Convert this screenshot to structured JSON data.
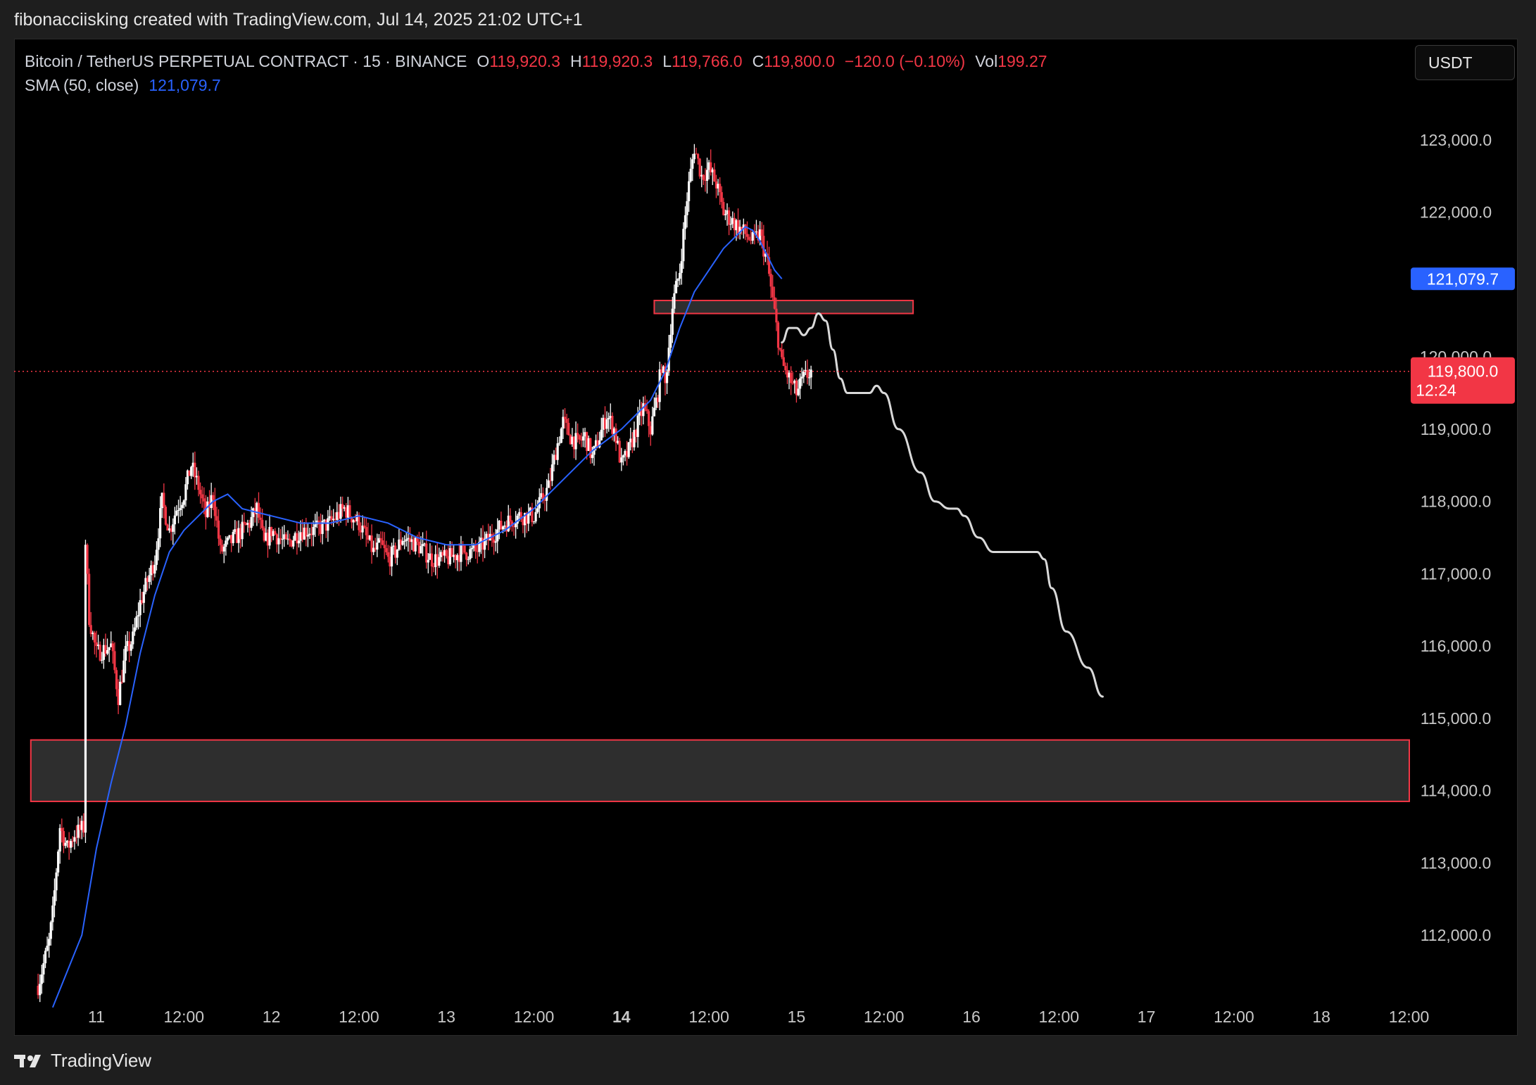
{
  "header": {
    "caption": "fibonacciisking created with TradingView.com, Jul 14, 2025 21:02 UTC+1"
  },
  "legend": {
    "symbol": "Bitcoin / TetherUS PERPETUAL CONTRACT · 15 · BINANCE",
    "o_label": "O",
    "o_value": "119,920.3",
    "h_label": "H",
    "h_value": "119,920.3",
    "l_label": "L",
    "l_value": "119,766.0",
    "c_label": "C",
    "c_value": "119,800.0",
    "change": "−120.0 (−0.10%)",
    "vol_label": "Vol",
    "vol_value": "199.27",
    "sma_label": "SMA (50, close)",
    "sma_value": "121,079.7"
  },
  "toolbar": {
    "currency": "USDT"
  },
  "footer": {
    "brand": "TradingView"
  },
  "colors": {
    "up": "#ffffff",
    "down": "#f23645",
    "sma": "#2962ff",
    "projection": "#d9d9d9",
    "zone_fill": "#2e2e2e",
    "zone_border": "#f23645"
  },
  "chart_data": {
    "type": "candlestick",
    "ylim": [
      111000,
      124000
    ],
    "y_ticks": [
      "123,000.0",
      "122,000.0",
      "120,000.0",
      "119,000.0",
      "118,000.0",
      "117,000.0",
      "116,000.0",
      "115,000.0",
      "114,000.0",
      "113,000.0",
      "112,000.0"
    ],
    "y_tick_values": [
      123000,
      122000,
      120000,
      119000,
      118000,
      117000,
      116000,
      115000,
      114000,
      113000,
      112000
    ],
    "x_ticks": [
      "11",
      "12:00",
      "12",
      "12:00",
      "13",
      "12:00",
      "14",
      "12:00",
      "15",
      "12:00",
      "16",
      "12:00",
      "17",
      "12:00",
      "18",
      "12:00"
    ],
    "x_tick_values": [
      0,
      12,
      24,
      36,
      48,
      60,
      72,
      84,
      96,
      108,
      120,
      132,
      144,
      156,
      168,
      180
    ],
    "x_unit": "hours since Jul 11 00:00",
    "xlim": [
      -9,
      185
    ],
    "current_price": {
      "value": 119800,
      "label": "119,800.0",
      "countdown": "12:24"
    },
    "sma_last": {
      "value": 121079.7,
      "label": "121,079.7"
    },
    "price_path": [
      [
        -8,
        111300
      ],
      [
        -6.5,
        111900
      ],
      [
        -6,
        112300
      ],
      [
        -5,
        113500
      ],
      [
        -4,
        113200
      ],
      [
        -3,
        113400
      ],
      [
        -1.5,
        113500
      ],
      [
        -1.5,
        117400
      ],
      [
        -1,
        116400
      ],
      [
        0,
        115900
      ],
      [
        2,
        116000
      ],
      [
        3,
        115300
      ],
      [
        4,
        115900
      ],
      [
        5,
        116100
      ],
      [
        6,
        116600
      ],
      [
        7,
        116900
      ],
      [
        8,
        117200
      ],
      [
        9,
        118000
      ],
      [
        10,
        117600
      ],
      [
        11,
        117900
      ],
      [
        12,
        118100
      ],
      [
        13,
        118500
      ],
      [
        14,
        118200
      ],
      [
        15,
        117800
      ],
      [
        16,
        118100
      ],
      [
        17,
        117300
      ],
      [
        18,
        117400
      ],
      [
        19,
        117500
      ],
      [
        20,
        117600
      ],
      [
        21,
        117700
      ],
      [
        22,
        117900
      ],
      [
        23,
        117400
      ],
      [
        24,
        117600
      ],
      [
        25,
        117500
      ],
      [
        26,
        117400
      ],
      [
        28,
        117600
      ],
      [
        30,
        117600
      ],
      [
        32,
        117700
      ],
      [
        34,
        117900
      ],
      [
        36,
        117700
      ],
      [
        37,
        117500
      ],
      [
        38,
        117300
      ],
      [
        39,
        117400
      ],
      [
        40,
        117200
      ],
      [
        41,
        117300
      ],
      [
        42,
        117500
      ],
      [
        44,
        117400
      ],
      [
        46,
        117200
      ],
      [
        48,
        117200
      ],
      [
        50,
        117300
      ],
      [
        52,
        117300
      ],
      [
        54,
        117500
      ],
      [
        56,
        117700
      ],
      [
        58,
        117800
      ],
      [
        60,
        117800
      ],
      [
        62,
        118200
      ],
      [
        63,
        118700
      ],
      [
        64,
        119100
      ],
      [
        65,
        118900
      ],
      [
        66,
        118800
      ],
      [
        67,
        118900
      ],
      [
        68,
        118600
      ],
      [
        69,
        118900
      ],
      [
        70,
        119200
      ],
      [
        71,
        119000
      ],
      [
        72,
        118500
      ],
      [
        73,
        118700
      ],
      [
        74,
        119000
      ],
      [
        75,
        119300
      ],
      [
        76,
        119000
      ],
      [
        77,
        119500
      ],
      [
        77.5,
        119900
      ],
      [
        78,
        119600
      ],
      [
        79,
        120700
      ],
      [
        80,
        121200
      ],
      [
        81,
        122200
      ],
      [
        82,
        122900
      ],
      [
        83,
        122500
      ],
      [
        84,
        122600
      ],
      [
        85,
        122400
      ],
      [
        86,
        122000
      ],
      [
        87,
        121900
      ],
      [
        88,
        121800
      ],
      [
        89,
        121700
      ],
      [
        90,
        121600
      ],
      [
        91,
        121700
      ],
      [
        92,
        121300
      ],
      [
        93,
        120600
      ],
      [
        94,
        119900
      ],
      [
        95,
        119700
      ],
      [
        96,
        119500
      ],
      [
        97,
        119700
      ],
      [
        98,
        119800
      ]
    ],
    "sma": [
      [
        -6,
        111000
      ],
      [
        -2,
        112000
      ],
      [
        0,
        113200
      ],
      [
        2,
        114100
      ],
      [
        4,
        114900
      ],
      [
        6,
        115900
      ],
      [
        8,
        116700
      ],
      [
        10,
        117300
      ],
      [
        12,
        117600
      ],
      [
        14,
        117800
      ],
      [
        16,
        118000
      ],
      [
        18,
        118100
      ],
      [
        20,
        117900
      ],
      [
        24,
        117800
      ],
      [
        28,
        117700
      ],
      [
        32,
        117700
      ],
      [
        36,
        117800
      ],
      [
        40,
        117700
      ],
      [
        44,
        117500
      ],
      [
        48,
        117400
      ],
      [
        52,
        117400
      ],
      [
        56,
        117600
      ],
      [
        60,
        117900
      ],
      [
        64,
        118300
      ],
      [
        68,
        118700
      ],
      [
        72,
        119000
      ],
      [
        74,
        119200
      ],
      [
        76,
        119400
      ],
      [
        78,
        119800
      ],
      [
        80,
        120400
      ],
      [
        82,
        120900
      ],
      [
        84,
        121200
      ],
      [
        86,
        121500
      ],
      [
        88,
        121700
      ],
      [
        89,
        121800
      ],
      [
        90,
        121750
      ],
      [
        91,
        121600
      ],
      [
        92,
        121400
      ],
      [
        93,
        121200
      ],
      [
        94,
        121080
      ]
    ],
    "projection": [
      [
        94,
        120200
      ],
      [
        95,
        120400
      ],
      [
        96,
        120400
      ],
      [
        97,
        120300
      ],
      [
        98,
        120400
      ],
      [
        99,
        120600
      ],
      [
        100,
        120500
      ],
      [
        101,
        120100
      ],
      [
        102,
        119700
      ],
      [
        103,
        119500
      ],
      [
        104,
        119500
      ],
      [
        105,
        119500
      ],
      [
        106,
        119500
      ],
      [
        107,
        119600
      ],
      [
        108,
        119500
      ],
      [
        110,
        119000
      ],
      [
        113,
        118400
      ],
      [
        115,
        118000
      ],
      [
        117,
        117900
      ],
      [
        118,
        117900
      ],
      [
        119,
        117800
      ],
      [
        121,
        117500
      ],
      [
        123,
        117300
      ],
      [
        125,
        117300
      ],
      [
        127,
        117300
      ],
      [
        129,
        117300
      ],
      [
        130,
        117200
      ],
      [
        131,
        116800
      ],
      [
        133,
        116200
      ],
      [
        136,
        115700
      ],
      [
        138,
        115300
      ]
    ],
    "zones": [
      {
        "name": "resistance",
        "x_start": 76.5,
        "x_end": 112,
        "y_low": 120600,
        "y_high": 120780
      },
      {
        "name": "support",
        "x_start": -9,
        "x_end": 185,
        "y_low": 113850,
        "y_high": 114700
      }
    ]
  }
}
